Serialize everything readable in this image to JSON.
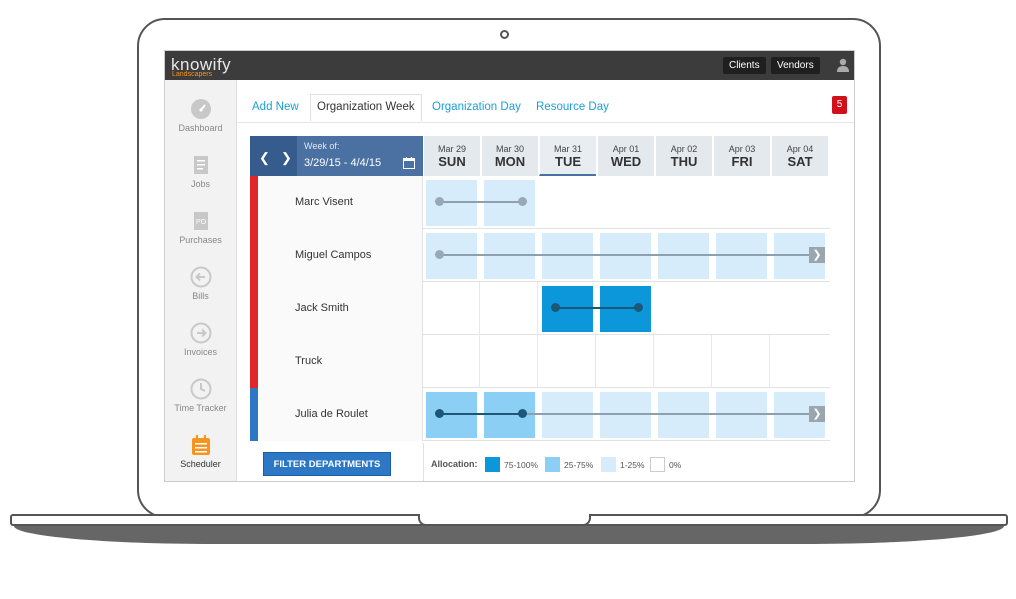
{
  "brand": {
    "logo": "knowify",
    "subtitle": "Landscapers"
  },
  "topbar": {
    "clients": "Clients",
    "vendors": "Vendors"
  },
  "sidebar": {
    "items": [
      {
        "label": "Dashboard",
        "icon": "gauge-icon"
      },
      {
        "label": "Jobs",
        "icon": "document-icon"
      },
      {
        "label": "Purchases",
        "icon": "purchase-order-icon"
      },
      {
        "label": "Bills",
        "icon": "arrow-left-circle-icon"
      },
      {
        "label": "Invoices",
        "icon": "arrow-right-circle-icon"
      },
      {
        "label": "Time Tracker",
        "icon": "clock-icon"
      },
      {
        "label": "Scheduler",
        "icon": "calendar-icon",
        "active": true
      }
    ]
  },
  "tabs": [
    "Add New",
    "Organization Week",
    "Organization Day",
    "Resource Day"
  ],
  "notifications": "5",
  "week": {
    "label": "Week of:",
    "range": "3/29/15 - 4/4/15"
  },
  "days": [
    {
      "date": "Mar 29",
      "weekday": "SUN"
    },
    {
      "date": "Mar 30",
      "weekday": "MON"
    },
    {
      "date": "Mar 31",
      "weekday": "TUE"
    },
    {
      "date": "Apr 01",
      "weekday": "WED"
    },
    {
      "date": "Apr 02",
      "weekday": "THU"
    },
    {
      "date": "Apr 03",
      "weekday": "FRI"
    },
    {
      "date": "Apr 04",
      "weekday": "SAT"
    }
  ],
  "resources": [
    {
      "name": "Marc Visent",
      "color": "#e0262b"
    },
    {
      "name": "Miguel Campos",
      "color": "#e0262b"
    },
    {
      "name": "Jack Smith",
      "color": "#e0262b"
    },
    {
      "name": "Truck",
      "color": "#e0262b"
    },
    {
      "name": "Julia de Roulet",
      "color": "#2c78c4"
    }
  ],
  "buttons": {
    "filter": "FILTER DEPARTMENTS"
  },
  "legend": {
    "title": "Allocation:",
    "items": [
      {
        "label": "75-100%",
        "color": "#0b97d9"
      },
      {
        "label": "25-75%",
        "color": "#8ccff5"
      },
      {
        "label": "1-25%",
        "color": "#d6ecfa"
      },
      {
        "label": "0%",
        "color": "#ffffff"
      }
    ]
  }
}
